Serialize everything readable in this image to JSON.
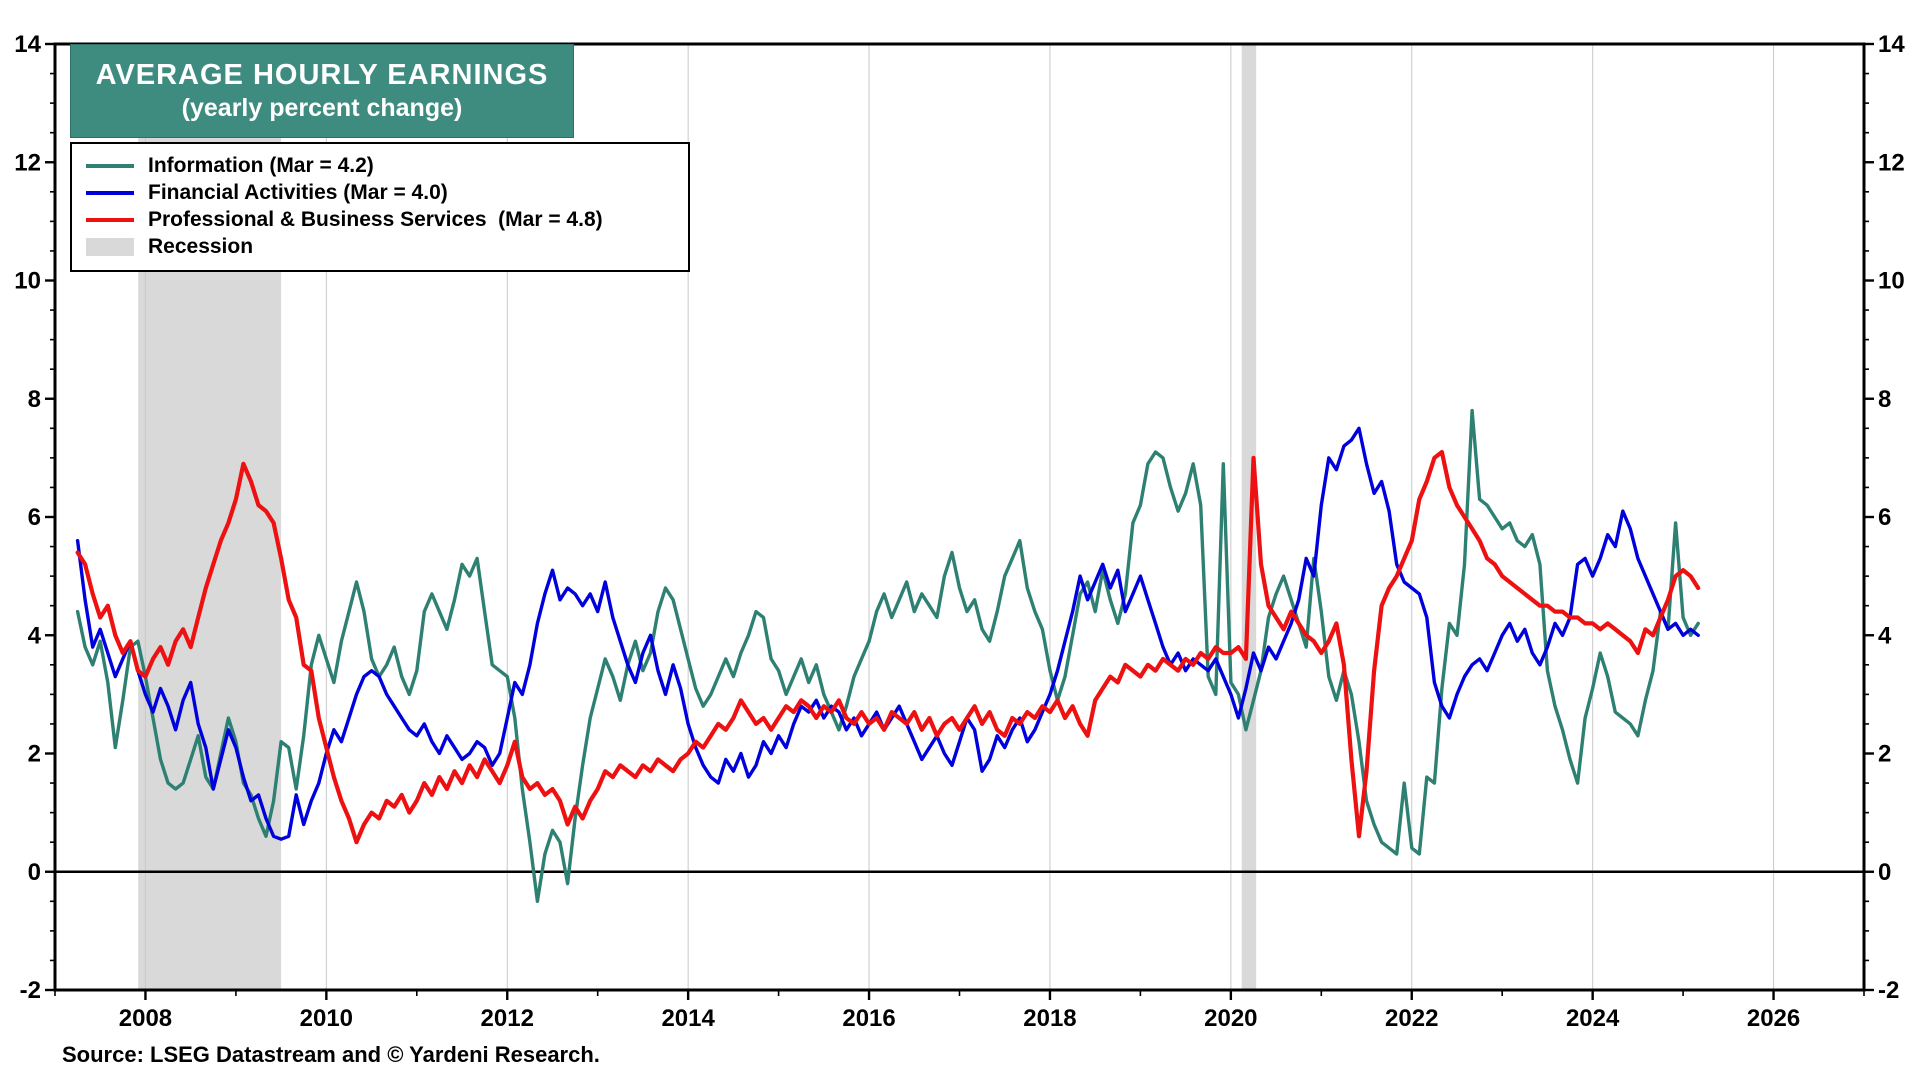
{
  "title": {
    "line1": "AVERAGE HOURLY EARNINGS",
    "line2": "(yearly percent change)",
    "bg_color": "#3e8c80"
  },
  "legend": {
    "items": [
      {
        "label": "Information (Mar = 4.2)",
        "color": "#2e8073",
        "type": "line"
      },
      {
        "label": "Financial Activities (Mar = 4.0)",
        "color": "#0000dd",
        "type": "line"
      },
      {
        "label": "Professional & Business Services  (Mar = 4.8)",
        "color": "#ee1111",
        "type": "line"
      },
      {
        "label": "Recession",
        "color": "#d9d9d9",
        "type": "patch"
      }
    ]
  },
  "source": "Source: LSEG Datastream and © Yardeni Research.",
  "colors": {
    "plot_border": "#000000",
    "gridline": "#c9c9c9",
    "zero_line": "#000000",
    "recession": "#d9d9d9",
    "axis_text": "#000000"
  },
  "chart_data": {
    "type": "line",
    "title": "AVERAGE HOURLY EARNINGS (yearly percent change)",
    "xlabel": "",
    "ylabel": "",
    "xlim": [
      2007,
      2027
    ],
    "ylim": [
      -2,
      14
    ],
    "x_ticks": [
      2008,
      2010,
      2012,
      2014,
      2016,
      2018,
      2020,
      2022,
      2024,
      2026
    ],
    "y_ticks": [
      -2,
      0,
      2,
      4,
      6,
      8,
      10,
      12,
      14
    ],
    "grid": "vertical-light",
    "legend_position": "top-left",
    "x_start": 2007.25,
    "x_step": 0.0833333,
    "x_unit": "monthly (decimal years), Apr 2007 through Mar 2025",
    "recessions": [
      [
        2007.92,
        2009.5
      ],
      [
        2020.12,
        2020.28
      ]
    ],
    "series": [
      {
        "name": "Information",
        "key": "information",
        "color": "#2e8073",
        "last_point": "Mar 2025 = 4.2",
        "values": [
          4.4,
          3.8,
          3.5,
          3.9,
          3.2,
          2.1,
          2.9,
          3.8,
          3.9,
          3.3,
          2.6,
          1.9,
          1.5,
          1.4,
          1.5,
          1.9,
          2.3,
          1.6,
          1.4,
          2.0,
          2.6,
          2.2,
          1.5,
          1.3,
          0.9,
          0.6,
          1.2,
          2.2,
          2.1,
          1.4,
          2.3,
          3.5,
          4.0,
          3.6,
          3.2,
          3.9,
          4.4,
          4.9,
          4.4,
          3.6,
          3.3,
          3.5,
          3.8,
          3.3,
          3.0,
          3.4,
          4.4,
          4.7,
          4.4,
          4.1,
          4.6,
          5.2,
          5.0,
          5.3,
          4.4,
          3.5,
          3.4,
          3.3,
          2.6,
          1.4,
          0.5,
          -0.5,
          0.3,
          0.7,
          0.5,
          -0.2,
          0.9,
          1.8,
          2.6,
          3.1,
          3.6,
          3.3,
          2.9,
          3.5,
          3.9,
          3.4,
          3.7,
          4.4,
          4.8,
          4.6,
          4.1,
          3.6,
          3.1,
          2.8,
          3.0,
          3.3,
          3.6,
          3.3,
          3.7,
          4.0,
          4.4,
          4.3,
          3.6,
          3.4,
          3.0,
          3.3,
          3.6,
          3.2,
          3.5,
          3.0,
          2.7,
          2.4,
          2.8,
          3.3,
          3.6,
          3.9,
          4.4,
          4.7,
          4.3,
          4.6,
          4.9,
          4.4,
          4.7,
          4.5,
          4.3,
          5.0,
          5.4,
          4.8,
          4.4,
          4.6,
          4.1,
          3.9,
          4.4,
          5.0,
          5.3,
          5.6,
          4.8,
          4.4,
          4.1,
          3.4,
          2.9,
          3.3,
          4.0,
          4.7,
          4.9,
          4.4,
          5.1,
          4.6,
          4.2,
          4.7,
          5.9,
          6.2,
          6.9,
          7.1,
          7.0,
          6.5,
          6.1,
          6.4,
          6.9,
          6.2,
          3.3,
          3.0,
          6.9,
          3.2,
          3.0,
          2.4,
          2.9,
          3.4,
          4.3,
          4.7,
          5.0,
          4.6,
          4.2,
          3.8,
          5.3,
          4.4,
          3.3,
          2.9,
          3.4,
          3.0,
          2.2,
          1.2,
          0.8,
          0.5,
          0.4,
          0.3,
          1.5,
          0.4,
          0.3,
          1.6,
          1.5,
          3.1,
          4.2,
          4.0,
          5.2,
          7.8,
          6.3,
          6.2,
          6.0,
          5.8,
          5.9,
          5.6,
          5.5,
          5.7,
          5.2,
          3.4,
          2.8,
          2.4,
          1.9,
          1.5,
          2.6,
          3.1,
          3.7,
          3.3,
          2.7,
          2.6,
          2.5,
          2.3,
          2.9,
          3.4,
          4.4,
          4.1,
          5.9,
          4.3,
          4.0,
          4.2
        ]
      },
      {
        "name": "Financial Activities",
        "key": "financial-activities",
        "color": "#0000dd",
        "last_point": "Mar 2025 = 4.0",
        "values": [
          5.6,
          4.6,
          3.8,
          4.1,
          3.7,
          3.3,
          3.6,
          3.9,
          3.4,
          3.0,
          2.7,
          3.1,
          2.8,
          2.4,
          2.9,
          3.2,
          2.5,
          2.1,
          1.4,
          1.9,
          2.4,
          2.1,
          1.6,
          1.2,
          1.3,
          0.9,
          0.6,
          0.55,
          0.6,
          1.3,
          0.8,
          1.2,
          1.5,
          2.0,
          2.4,
          2.2,
          2.6,
          3.0,
          3.3,
          3.4,
          3.3,
          3.0,
          2.8,
          2.6,
          2.4,
          2.3,
          2.5,
          2.2,
          2.0,
          2.3,
          2.1,
          1.9,
          2.0,
          2.2,
          2.1,
          1.8,
          2.0,
          2.6,
          3.2,
          3.0,
          3.5,
          4.2,
          4.7,
          5.1,
          4.6,
          4.8,
          4.7,
          4.5,
          4.7,
          4.4,
          4.9,
          4.3,
          3.9,
          3.5,
          3.2,
          3.7,
          4.0,
          3.4,
          3.0,
          3.5,
          3.1,
          2.5,
          2.1,
          1.8,
          1.6,
          1.5,
          1.9,
          1.7,
          2.0,
          1.6,
          1.8,
          2.2,
          2.0,
          2.3,
          2.1,
          2.5,
          2.8,
          2.7,
          2.9,
          2.6,
          2.8,
          2.7,
          2.4,
          2.6,
          2.3,
          2.5,
          2.7,
          2.4,
          2.6,
          2.8,
          2.5,
          2.2,
          1.9,
          2.1,
          2.3,
          2.0,
          1.8,
          2.2,
          2.6,
          2.4,
          1.7,
          1.9,
          2.3,
          2.1,
          2.4,
          2.6,
          2.2,
          2.4,
          2.7,
          3.0,
          3.4,
          3.9,
          4.4,
          5.0,
          4.6,
          4.9,
          5.2,
          4.8,
          5.1,
          4.4,
          4.7,
          5.0,
          4.6,
          4.2,
          3.8,
          3.5,
          3.7,
          3.4,
          3.6,
          3.5,
          3.4,
          3.6,
          3.3,
          3.0,
          2.6,
          3.1,
          3.7,
          3.4,
          3.8,
          3.6,
          3.9,
          4.2,
          4.6,
          5.3,
          5.0,
          6.2,
          7.0,
          6.8,
          7.2,
          7.3,
          7.5,
          6.9,
          6.4,
          6.6,
          6.1,
          5.2,
          4.9,
          4.8,
          4.7,
          4.3,
          3.2,
          2.8,
          2.6,
          3.0,
          3.3,
          3.5,
          3.6,
          3.4,
          3.7,
          4.0,
          4.2,
          3.9,
          4.1,
          3.7,
          3.5,
          3.8,
          4.2,
          4.0,
          4.3,
          5.2,
          5.3,
          5.0,
          5.3,
          5.7,
          5.5,
          6.1,
          5.8,
          5.3,
          5.0,
          4.7,
          4.4,
          4.1,
          4.2,
          4.0,
          4.1,
          4.0
        ]
      },
      {
        "name": "Professional & Business Services",
        "key": "professional-business-services",
        "color": "#ee1111",
        "last_point": "Mar 2025 = 4.8",
        "values": [
          5.4,
          5.2,
          4.7,
          4.3,
          4.5,
          4.0,
          3.7,
          3.9,
          3.4,
          3.3,
          3.6,
          3.8,
          3.5,
          3.9,
          4.1,
          3.8,
          4.3,
          4.8,
          5.2,
          5.6,
          5.9,
          6.3,
          6.9,
          6.6,
          6.2,
          6.1,
          5.9,
          5.3,
          4.6,
          4.3,
          3.5,
          3.4,
          2.6,
          2.1,
          1.6,
          1.2,
          0.9,
          0.5,
          0.8,
          1.0,
          0.9,
          1.2,
          1.1,
          1.3,
          1.0,
          1.2,
          1.5,
          1.3,
          1.6,
          1.4,
          1.7,
          1.5,
          1.8,
          1.6,
          1.9,
          1.7,
          1.5,
          1.8,
          2.2,
          1.6,
          1.4,
          1.5,
          1.3,
          1.4,
          1.2,
          0.8,
          1.1,
          0.9,
          1.2,
          1.4,
          1.7,
          1.6,
          1.8,
          1.7,
          1.6,
          1.8,
          1.7,
          1.9,
          1.8,
          1.7,
          1.9,
          2.0,
          2.2,
          2.1,
          2.3,
          2.5,
          2.4,
          2.6,
          2.9,
          2.7,
          2.5,
          2.6,
          2.4,
          2.6,
          2.8,
          2.7,
          2.9,
          2.8,
          2.6,
          2.8,
          2.7,
          2.9,
          2.6,
          2.5,
          2.7,
          2.5,
          2.6,
          2.4,
          2.7,
          2.6,
          2.5,
          2.7,
          2.4,
          2.6,
          2.3,
          2.5,
          2.6,
          2.4,
          2.6,
          2.8,
          2.5,
          2.7,
          2.4,
          2.3,
          2.6,
          2.5,
          2.7,
          2.6,
          2.8,
          2.7,
          2.9,
          2.6,
          2.8,
          2.5,
          2.3,
          2.9,
          3.1,
          3.3,
          3.2,
          3.5,
          3.4,
          3.3,
          3.5,
          3.4,
          3.6,
          3.5,
          3.4,
          3.6,
          3.5,
          3.7,
          3.6,
          3.8,
          3.7,
          3.7,
          3.8,
          3.6,
          7.0,
          5.2,
          4.5,
          4.3,
          4.1,
          4.4,
          4.2,
          4.0,
          3.9,
          3.7,
          3.9,
          4.2,
          3.5,
          1.9,
          0.6,
          1.7,
          3.4,
          4.5,
          4.8,
          5.0,
          5.3,
          5.6,
          6.3,
          6.6,
          7.0,
          7.1,
          6.5,
          6.2,
          6.0,
          5.8,
          5.6,
          5.3,
          5.2,
          5.0,
          4.9,
          4.8,
          4.7,
          4.6,
          4.5,
          4.5,
          4.4,
          4.4,
          4.3,
          4.3,
          4.2,
          4.2,
          4.1,
          4.2,
          4.1,
          4.0,
          3.9,
          3.7,
          4.1,
          4.0,
          4.3,
          4.6,
          5.0,
          5.1,
          5.0,
          4.8
        ]
      }
    ]
  }
}
